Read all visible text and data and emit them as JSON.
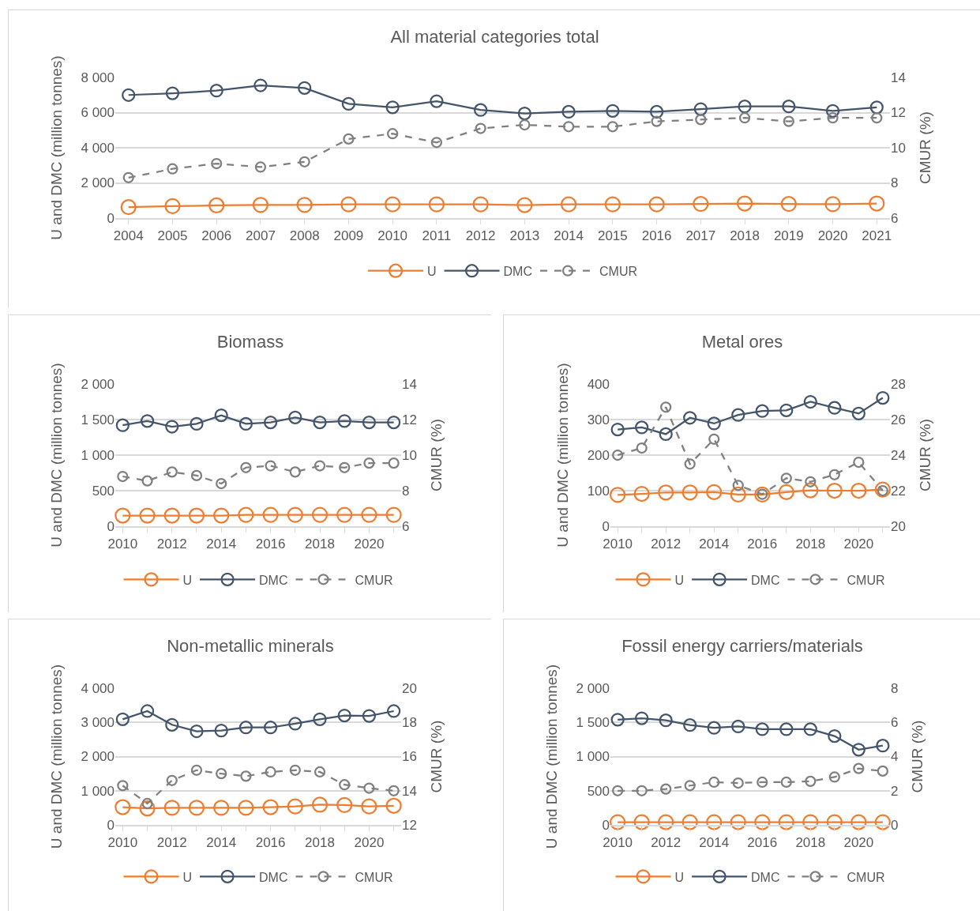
{
  "chart_data": [
    {
      "type": "line",
      "title": "All material categories total",
      "ylabel": "U and DMC (million tonnes)",
      "y2label": "CMUR (%)",
      "categories": [
        "2004",
        "2005",
        "2006",
        "2007",
        "2008",
        "2009",
        "2010",
        "2011",
        "2012",
        "2013",
        "2014",
        "2015",
        "2016",
        "2017",
        "2018",
        "2019",
        "2020",
        "2021"
      ],
      "ylim": [
        0,
        8000
      ],
      "yticks": [
        0,
        {
          "value": 2000,
          "label": "2 000"
        },
        {
          "value": 4000,
          "label": "4 000"
        },
        {
          "value": 6000,
          "label": "6 000"
        },
        {
          "value": 8000,
          "label": "8 000"
        }
      ],
      "y2lim": [
        6,
        14
      ],
      "y2ticks": [
        6,
        8,
        10,
        12,
        14
      ],
      "grid": "y",
      "legend": "bottom",
      "marker": "circle",
      "series": [
        {
          "name": "U",
          "color": "#ed7d31",
          "line_style": "solid",
          "values": [
            620,
            680,
            720,
            750,
            750,
            780,
            780,
            780,
            780,
            740,
            780,
            780,
            780,
            800,
            830,
            800,
            790,
            830
          ]
        },
        {
          "name": "DMC",
          "color": "#44546a",
          "line_style": "solid",
          "values": [
            7000,
            7100,
            7250,
            7550,
            7400,
            6500,
            6300,
            6650,
            6150,
            5950,
            6050,
            6100,
            6050,
            6200,
            6350,
            6350,
            6100,
            6300
          ]
        },
        {
          "name": "CMUR",
          "color": "#7f7f7f",
          "line_style": "dashed",
          "axis": "y2",
          "values": [
            8.3,
            8.8,
            9.1,
            8.9,
            9.2,
            10.5,
            10.8,
            10.3,
            11.1,
            11.3,
            11.2,
            11.2,
            11.5,
            11.6,
            11.7,
            11.5,
            11.7,
            11.7
          ]
        }
      ]
    },
    {
      "type": "line",
      "title": "Biomass",
      "ylabel": "U and DMC (million tonnes)",
      "y2label": "CMUR (%)",
      "categories": [
        "2010",
        null,
        "2012",
        null,
        "2014",
        null,
        "2016",
        null,
        "2018",
        null,
        "2020",
        null
      ],
      "ylim": [
        0,
        2000
      ],
      "yticks": [
        0,
        500,
        {
          "value": 1000,
          "label": "1 000"
        },
        {
          "value": 1500,
          "label": "1 500"
        },
        {
          "value": 2000,
          "label": "2 000"
        }
      ],
      "y2lim": [
        6,
        14
      ],
      "y2ticks": [
        6,
        8,
        10,
        12,
        14
      ],
      "grid": "y",
      "legend": "bottom",
      "marker": "circle",
      "series": [
        {
          "name": "U",
          "color": "#ed7d31",
          "line_style": "solid",
          "values": [
            150,
            150,
            150,
            150,
            150,
            160,
            160,
            160,
            160,
            160,
            160,
            160
          ]
        },
        {
          "name": "DMC",
          "color": "#44546a",
          "line_style": "solid",
          "values": [
            1420,
            1480,
            1400,
            1440,
            1560,
            1440,
            1460,
            1530,
            1460,
            1480,
            1460,
            1460
          ]
        },
        {
          "name": "CMUR",
          "color": "#7f7f7f",
          "line_style": "dashed",
          "axis": "y2",
          "values": [
            8.8,
            8.55,
            9.05,
            8.85,
            8.4,
            9.3,
            9.4,
            9.05,
            9.4,
            9.3,
            9.55,
            9.55
          ]
        }
      ]
    },
    {
      "type": "line",
      "title": "Metal ores",
      "ylabel": "U and DMC (million tonnes)",
      "y2label": "CMUR (%)",
      "categories": [
        "2010",
        null,
        "2012",
        null,
        "2014",
        null,
        "2016",
        null,
        "2018",
        null,
        "2020",
        null
      ],
      "ylim": [
        0,
        400
      ],
      "yticks": [
        0,
        100,
        200,
        300,
        400
      ],
      "y2lim": [
        20,
        28
      ],
      "y2ticks": [
        20,
        22,
        24,
        26,
        28
      ],
      "grid": "y",
      "legend": "bottom",
      "marker": "circle",
      "series": [
        {
          "name": "U",
          "color": "#ed7d31",
          "line_style": "solid",
          "values": [
            88,
            91,
            95,
            95,
            96,
            89,
            89,
            96,
            101,
            100,
            100,
            103
          ]
        },
        {
          "name": "DMC",
          "color": "#44546a",
          "line_style": "solid",
          "values": [
            272,
            278,
            259,
            305,
            289,
            313,
            324,
            326,
            350,
            333,
            317,
            361
          ]
        },
        {
          "name": "CMUR",
          "color": "#7f7f7f",
          "line_style": "dashed",
          "axis": "y2",
          "values": [
            24.0,
            24.4,
            26.7,
            23.5,
            24.9,
            22.3,
            21.8,
            22.7,
            22.5,
            22.9,
            23.6,
            22.0
          ]
        }
      ]
    },
    {
      "type": "line",
      "title": "Non-metallic minerals",
      "ylabel": "U and DMC (million tonnes)",
      "y2label": "CMUR (%)",
      "categories": [
        "2010",
        null,
        "2012",
        null,
        "2014",
        null,
        "2016",
        null,
        "2018",
        null,
        "2020",
        null
      ],
      "ylim": [
        0,
        4000
      ],
      "yticks": [
        0,
        {
          "value": 1000,
          "label": "1 000"
        },
        {
          "value": 2000,
          "label": "2 000"
        },
        {
          "value": 3000,
          "label": "3 000"
        },
        {
          "value": 4000,
          "label": "4 000"
        }
      ],
      "y2lim": [
        12,
        20
      ],
      "y2ticks": [
        12,
        14,
        16,
        18,
        20
      ],
      "grid": "y",
      "legend": "bottom",
      "marker": "circle",
      "series": [
        {
          "name": "U",
          "color": "#ed7d31",
          "line_style": "solid",
          "values": [
            520,
            480,
            500,
            500,
            500,
            500,
            520,
            540,
            590,
            580,
            540,
            560
          ]
        },
        {
          "name": "DMC",
          "color": "#44546a",
          "line_style": "solid",
          "values": [
            3090,
            3330,
            2930,
            2740,
            2760,
            2850,
            2850,
            2960,
            3090,
            3200,
            3190,
            3330
          ]
        },
        {
          "name": "CMUR",
          "color": "#7f7f7f",
          "line_style": "dashed",
          "axis": "y2",
          "values": [
            14.3,
            13.25,
            14.6,
            15.2,
            15.0,
            14.85,
            15.1,
            15.2,
            15.1,
            14.35,
            14.15,
            14.0
          ]
        }
      ]
    },
    {
      "type": "line",
      "title": "Fossil energy carriers/materials",
      "ylabel": "U and DMC (million tonnes)",
      "y2label": "CMUR (%)",
      "categories": [
        "2010",
        null,
        "2012",
        null,
        "2014",
        null,
        "2016",
        null,
        "2018",
        null,
        "2020",
        null
      ],
      "ylim": [
        0,
        2000
      ],
      "yticks": [
        0,
        500,
        {
          "value": 1000,
          "label": "1 000"
        },
        {
          "value": 1500,
          "label": "1 500"
        },
        {
          "value": 2000,
          "label": "2 000"
        }
      ],
      "y2lim": [
        0,
        8
      ],
      "y2ticks": [
        0,
        2,
        4,
        6,
        8
      ],
      "grid": "y",
      "legend": "bottom",
      "marker": "circle",
      "series": [
        {
          "name": "U",
          "color": "#ed7d31",
          "line_style": "solid",
          "values": [
            40,
            40,
            40,
            40,
            40,
            40,
            40,
            40,
            40,
            40,
            40,
            40
          ]
        },
        {
          "name": "DMC",
          "color": "#44546a",
          "line_style": "solid",
          "values": [
            1540,
            1560,
            1530,
            1460,
            1420,
            1440,
            1400,
            1400,
            1400,
            1300,
            1100,
            1160
          ]
        },
        {
          "name": "CMUR",
          "color": "#7f7f7f",
          "line_style": "dashed",
          "axis": "y2",
          "values": [
            2.0,
            2.0,
            2.1,
            2.3,
            2.5,
            2.45,
            2.5,
            2.5,
            2.55,
            2.8,
            3.3,
            3.15
          ]
        }
      ]
    }
  ]
}
